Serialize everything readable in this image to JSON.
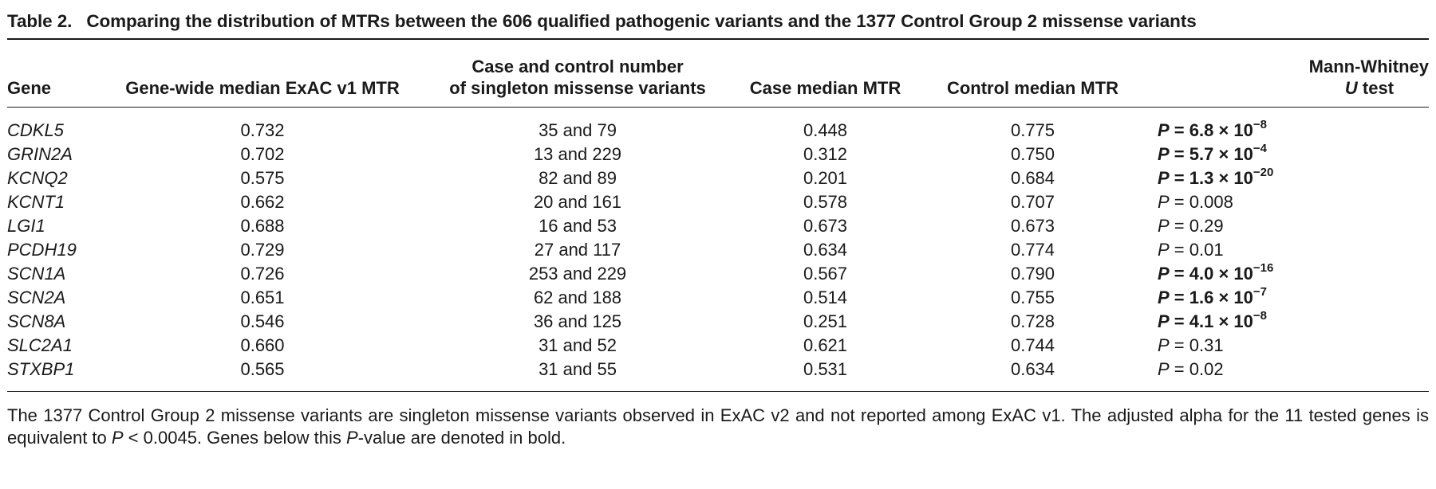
{
  "caption": {
    "label": "Table 2.",
    "title": "Comparing the distribution of MTRs between the 606 qualified pathogenic variants and the 1377 Control Group 2 missense variants"
  },
  "table": {
    "headers": {
      "gene": "Gene",
      "median": "Gene-wide median ExAC v1 MTR",
      "cc_line1": "Case and control number",
      "cc_line2": "of singleton missense variants",
      "case": "Case median MTR",
      "control": "Control median MTR",
      "p_line1": "Mann-Whitney",
      "p_line2_italic": "U",
      "p_line2_rest": " test"
    },
    "rows": [
      {
        "gene": "CDKL5",
        "median": "0.732",
        "counts": "35 and 79",
        "case": "0.448",
        "control": "0.775",
        "p_mantissa": "6.8",
        "p_exponent": "−8",
        "bold": true
      },
      {
        "gene": "GRIN2A",
        "median": "0.702",
        "counts": "13 and 229",
        "case": "0.312",
        "control": "0.750",
        "p_mantissa": "5.7",
        "p_exponent": "−4",
        "bold": true
      },
      {
        "gene": "KCNQ2",
        "median": "0.575",
        "counts": "82 and 89",
        "case": "0.201",
        "control": "0.684",
        "p_mantissa": "1.3",
        "p_exponent": "−20",
        "bold": true
      },
      {
        "gene": "KCNT1",
        "median": "0.662",
        "counts": "20 and 161",
        "case": "0.578",
        "control": "0.707",
        "p_value": "0.008",
        "bold": false
      },
      {
        "gene": "LGI1",
        "median": "0.688",
        "counts": "16 and 53",
        "case": "0.673",
        "control": "0.673",
        "p_value": "0.29",
        "bold": false
      },
      {
        "gene": "PCDH19",
        "median": "0.729",
        "counts": "27 and 117",
        "case": "0.634",
        "control": "0.774",
        "p_value": "0.01",
        "bold": false
      },
      {
        "gene": "SCN1A",
        "median": "0.726",
        "counts": "253 and 229",
        "case": "0.567",
        "control": "0.790",
        "p_mantissa": "4.0",
        "p_exponent": "−16",
        "bold": true
      },
      {
        "gene": "SCN2A",
        "median": "0.651",
        "counts": "62 and 188",
        "case": "0.514",
        "control": "0.755",
        "p_mantissa": "1.6",
        "p_exponent": "−7",
        "bold": true
      },
      {
        "gene": "SCN8A",
        "median": "0.546",
        "counts": "36 and 125",
        "case": "0.251",
        "control": "0.728",
        "p_mantissa": "4.1",
        "p_exponent": "−8",
        "bold": true
      },
      {
        "gene": "SLC2A1",
        "median": "0.660",
        "counts": "31 and 52",
        "case": "0.621",
        "control": "0.744",
        "p_value": "0.31",
        "bold": false
      },
      {
        "gene": "STXBP1",
        "median": "0.565",
        "counts": "31 and 55",
        "case": "0.531",
        "control": "0.634",
        "p_value": "0.02",
        "bold": false
      }
    ],
    "p_symbol": "P",
    "equals": " = ",
    "times_ten": " × 10"
  },
  "footnote": {
    "part1": "The 1377 Control Group 2 missense variants are singleton missense variants observed in ExAC v2 and not reported among ExAC v1. The adjusted alpha for the 11 tested genes is equivalent to ",
    "p_symbol": "P",
    "part2": " < 0.0045. Genes below this ",
    "p_symbol2": "P",
    "part3": "-value are denoted in bold."
  }
}
